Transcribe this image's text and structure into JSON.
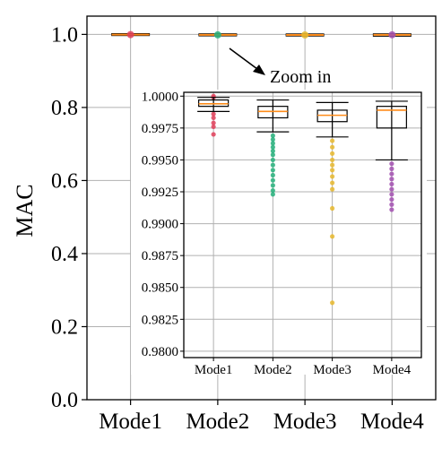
{
  "chart_data": [
    {
      "type": "box",
      "categories": [
        "Mode1",
        "Mode2",
        "Mode3",
        "Mode4"
      ],
      "ylabel": "MAC",
      "xlabel": "",
      "ylim": [
        0.0,
        1.05
      ],
      "yticks": [
        "0.0",
        "0.2",
        "0.4",
        "0.6",
        "0.8",
        "1.0"
      ],
      "grid": true,
      "series_colors": [
        "#e0405a",
        "#27b27d",
        "#e8b82e",
        "#a24fb0"
      ],
      "median_color": "#ff8c1a",
      "annotation": "Zoom in",
      "boxes": [
        {
          "name": "Mode1",
          "q1": 0.9992,
          "median": 0.9994,
          "q3": 0.9997,
          "whislo": 0.9988,
          "whishi": 0.9999
        },
        {
          "name": "Mode2",
          "q1": 0.9983,
          "median": 0.9988,
          "q3": 0.9992,
          "whislo": 0.9972,
          "whishi": 0.9997
        },
        {
          "name": "Mode3",
          "q1": 0.998,
          "median": 0.9985,
          "q3": 0.9989,
          "whislo": 0.9968,
          "whishi": 0.9995
        },
        {
          "name": "Mode4",
          "q1": 0.9975,
          "median": 0.9989,
          "q3": 0.9992,
          "whislo": 0.995,
          "whishi": 0.9996
        }
      ]
    },
    {
      "type": "box",
      "title": "",
      "categories": [
        "Mode1",
        "Mode2",
        "Mode3",
        "Mode4"
      ],
      "ylim": [
        0.9795,
        1.0003
      ],
      "yticks": [
        "0.9800",
        "0.9825",
        "0.9850",
        "0.9875",
        "0.9900",
        "0.9925",
        "0.9950",
        "0.9975",
        "1.0000"
      ],
      "grid": true,
      "boxes": [
        {
          "name": "Mode1",
          "q1": 0.9992,
          "median": 0.9994,
          "q3": 0.9997,
          "whislo": 0.9988,
          "whishi": 0.9999,
          "fliers": [
            0.9986,
            0.9983,
            0.9979,
            0.9976,
            0.997,
            1.0,
            0.9999
          ]
        },
        {
          "name": "Mode2",
          "q1": 0.9983,
          "median": 0.9988,
          "q3": 0.9992,
          "whislo": 0.9972,
          "whishi": 0.9997,
          "fliers": [
            0.9969,
            0.9966,
            0.9963,
            0.996,
            0.9957,
            0.9954,
            0.995,
            0.9946,
            0.9942,
            0.9938,
            0.9934,
            0.993,
            0.9926,
            0.9923
          ]
        },
        {
          "name": "Mode3",
          "q1": 0.998,
          "median": 0.9985,
          "q3": 0.9989,
          "whislo": 0.9968,
          "whishi": 0.9995,
          "fliers": [
            0.9965,
            0.996,
            0.9955,
            0.995,
            0.9946,
            0.9942,
            0.9937,
            0.9932,
            0.9927,
            0.9912,
            0.989,
            0.9838
          ]
        },
        {
          "name": "Mode4",
          "q1": 0.9975,
          "median": 0.9989,
          "q3": 0.9992,
          "whislo": 0.995,
          "whishi": 0.9996,
          "fliers": [
            0.9947,
            0.9943,
            0.9939,
            0.9935,
            0.9931,
            0.9927,
            0.9923,
            0.9919,
            0.9915,
            0.9911
          ]
        }
      ]
    }
  ]
}
